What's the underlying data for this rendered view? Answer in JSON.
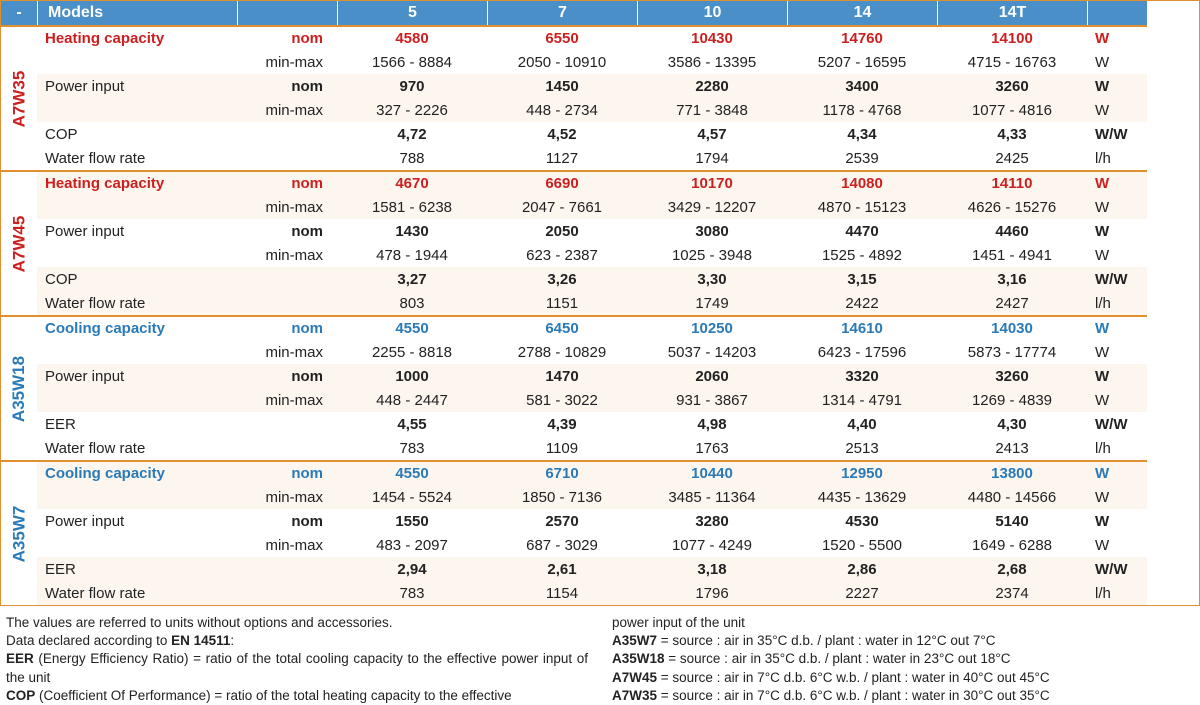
{
  "colors": {
    "header_bg": "#4a8fc7",
    "header_fg": "#ffffff",
    "row_alt_bg": "#fdf6ef",
    "border": "#e09030",
    "red": "#cc2020",
    "blue": "#2a7ab8"
  },
  "header": {
    "dash": "-",
    "models_label": "Models",
    "model_cols": [
      "5",
      "7",
      "10",
      "14",
      "14T"
    ],
    "unit_col": ""
  },
  "sections": [
    {
      "id": "A7W35",
      "label": "A7W35",
      "label_color": "red",
      "rows": [
        {
          "param": "Heating capacity",
          "param_color": "heating",
          "qual": "nom",
          "vals": [
            "4580",
            "6550",
            "10430",
            "14760",
            "14100"
          ],
          "unit": "W",
          "bold": true,
          "value_color": "red",
          "alt": false
        },
        {
          "param": "",
          "param_color": "",
          "qual": "min-max",
          "vals": [
            "1566 - 8884",
            "2050 - 10910",
            "3586 - 13395",
            "5207 - 16595",
            "4715 - 16763"
          ],
          "unit": "W",
          "bold": false,
          "value_color": "",
          "alt": false
        },
        {
          "param": "Power input",
          "param_color": "",
          "qual": "nom",
          "vals": [
            "970",
            "1450",
            "2280",
            "3400",
            "3260"
          ],
          "unit": "W",
          "bold": true,
          "value_color": "",
          "alt": true
        },
        {
          "param": "",
          "param_color": "",
          "qual": "min-max",
          "vals": [
            "327 - 2226",
            "448 - 2734",
            "771 - 3848",
            "1178 - 4768",
            "1077 - 4816"
          ],
          "unit": "W",
          "bold": false,
          "value_color": "",
          "alt": true
        },
        {
          "param": "COP",
          "param_color": "",
          "qual": "",
          "vals": [
            "4,72",
            "4,52",
            "4,57",
            "4,34",
            "4,33"
          ],
          "unit": "W/W",
          "bold": true,
          "value_color": "",
          "alt": false
        },
        {
          "param": "Water flow rate",
          "param_color": "",
          "qual": "",
          "vals": [
            "788",
            "1127",
            "1794",
            "2539",
            "2425"
          ],
          "unit": "l/h",
          "bold": false,
          "value_color": "",
          "alt": false
        }
      ]
    },
    {
      "id": "A7W45",
      "label": "A7W45",
      "label_color": "red",
      "rows": [
        {
          "param": "Heating capacity",
          "param_color": "heating",
          "qual": "nom",
          "vals": [
            "4670",
            "6690",
            "10170",
            "14080",
            "14110"
          ],
          "unit": "W",
          "bold": true,
          "value_color": "red",
          "alt": true
        },
        {
          "param": "",
          "param_color": "",
          "qual": "min-max",
          "vals": [
            "1581 - 6238",
            "2047 - 7661",
            "3429 - 12207",
            "4870 - 15123",
            "4626 - 15276"
          ],
          "unit": "W",
          "bold": false,
          "value_color": "",
          "alt": true
        },
        {
          "param": "Power input",
          "param_color": "",
          "qual": "nom",
          "vals": [
            "1430",
            "2050",
            "3080",
            "4470",
            "4460"
          ],
          "unit": "W",
          "bold": true,
          "value_color": "",
          "alt": false
        },
        {
          "param": "",
          "param_color": "",
          "qual": "min-max",
          "vals": [
            "478 - 1944",
            "623 - 2387",
            "1025 - 3948",
            "1525 - 4892",
            "1451 - 4941"
          ],
          "unit": "W",
          "bold": false,
          "value_color": "",
          "alt": false
        },
        {
          "param": "COP",
          "param_color": "",
          "qual": "",
          "vals": [
            "3,27",
            "3,26",
            "3,30",
            "3,15",
            "3,16"
          ],
          "unit": "W/W",
          "bold": true,
          "value_color": "",
          "alt": true
        },
        {
          "param": "Water flow rate",
          "param_color": "",
          "qual": "",
          "vals": [
            "803",
            "1151",
            "1749",
            "2422",
            "2427"
          ],
          "unit": "l/h",
          "bold": false,
          "value_color": "",
          "alt": true
        }
      ]
    },
    {
      "id": "A35W18",
      "label": "A35W18",
      "label_color": "blue",
      "rows": [
        {
          "param": "Cooling capacity",
          "param_color": "cooling",
          "qual": "nom",
          "vals": [
            "4550",
            "6450",
            "10250",
            "14610",
            "14030"
          ],
          "unit": "W",
          "bold": true,
          "value_color": "blue",
          "alt": false
        },
        {
          "param": "",
          "param_color": "",
          "qual": "min-max",
          "vals": [
            "2255 - 8818",
            "2788 - 10829",
            "5037 - 14203",
            "6423 - 17596",
            "5873 - 17774"
          ],
          "unit": "W",
          "bold": false,
          "value_color": "",
          "alt": false
        },
        {
          "param": "Power input",
          "param_color": "",
          "qual": "nom",
          "vals": [
            "1000",
            "1470",
            "2060",
            "3320",
            "3260"
          ],
          "unit": "W",
          "bold": true,
          "value_color": "",
          "alt": true
        },
        {
          "param": "",
          "param_color": "",
          "qual": "min-max",
          "vals": [
            "448 - 2447",
            "581 - 3022",
            "931 - 3867",
            "1314 - 4791",
            "1269 - 4839"
          ],
          "unit": "W",
          "bold": false,
          "value_color": "",
          "alt": true
        },
        {
          "param": "EER",
          "param_color": "",
          "qual": "",
          "vals": [
            "4,55",
            "4,39",
            "4,98",
            "4,40",
            "4,30"
          ],
          "unit": "W/W",
          "bold": true,
          "value_color": "",
          "alt": false
        },
        {
          "param": "Water flow rate",
          "param_color": "",
          "qual": "",
          "vals": [
            "783",
            "1109",
            "1763",
            "2513",
            "2413"
          ],
          "unit": "l/h",
          "bold": false,
          "value_color": "",
          "alt": false
        }
      ]
    },
    {
      "id": "A35W7",
      "label": "A35W7",
      "label_color": "blue",
      "rows": [
        {
          "param": "Cooling capacity",
          "param_color": "cooling",
          "qual": "nom",
          "vals": [
            "4550",
            "6710",
            "10440",
            "12950",
            "13800"
          ],
          "unit": "W",
          "bold": true,
          "value_color": "blue",
          "alt": true
        },
        {
          "param": "",
          "param_color": "",
          "qual": "min-max",
          "vals": [
            "1454 - 5524",
            "1850 - 7136",
            "3485 - 11364",
            "4435 - 13629",
            "4480 - 14566"
          ],
          "unit": "W",
          "bold": false,
          "value_color": "",
          "alt": true
        },
        {
          "param": "Power input",
          "param_color": "",
          "qual": "nom",
          "vals": [
            "1550",
            "2570",
            "3280",
            "4530",
            "5140"
          ],
          "unit": "W",
          "bold": true,
          "value_color": "",
          "alt": false
        },
        {
          "param": "",
          "param_color": "",
          "qual": "min-max",
          "vals": [
            "483 - 2097",
            "687 - 3029",
            "1077 - 4249",
            "1520 - 5500",
            "1649 - 6288"
          ],
          "unit": "W",
          "bold": false,
          "value_color": "",
          "alt": false
        },
        {
          "param": "EER",
          "param_color": "",
          "qual": "",
          "vals": [
            "2,94",
            "2,61",
            "3,18",
            "2,86",
            "2,68"
          ],
          "unit": "W/W",
          "bold": true,
          "value_color": "",
          "alt": true
        },
        {
          "param": "Water flow rate",
          "param_color": "",
          "qual": "",
          "vals": [
            "783",
            "1154",
            "1796",
            "2227",
            "2374"
          ],
          "unit": "l/h",
          "bold": false,
          "value_color": "",
          "alt": true
        }
      ]
    }
  ],
  "footnotes": {
    "left": {
      "line1": "The values are referred to units without options and accessories.",
      "line2a": "Data declared according to ",
      "line2b": "EN 14511",
      "line2c": ":",
      "line3a": "EER",
      "line3b": " (Energy Efficiency Ratio) = ratio of the total cooling capacity to the effective power input of the unit",
      "line4a": "COP",
      "line4b": " (Coefficient Of Performance) = ratio of the total heating capacity to the effective"
    },
    "right": {
      "line0": "power input of the unit",
      "defs": [
        {
          "k": "A35W7",
          "v": " = source : air in 35°C d.b. / plant : water in 12°C out 7°C"
        },
        {
          "k": "A35W18",
          "v": " = source : air in 35°C d.b. / plant : water in 23°C out 18°C"
        },
        {
          "k": "A7W45",
          "v": " = source : air in 7°C d.b. 6°C w.b. / plant : water in 40°C out 45°C"
        },
        {
          "k": "A7W35",
          "v": " = source : air in 7°C d.b. 6°C w.b. / plant : water in 30°C out 35°C"
        }
      ]
    }
  }
}
